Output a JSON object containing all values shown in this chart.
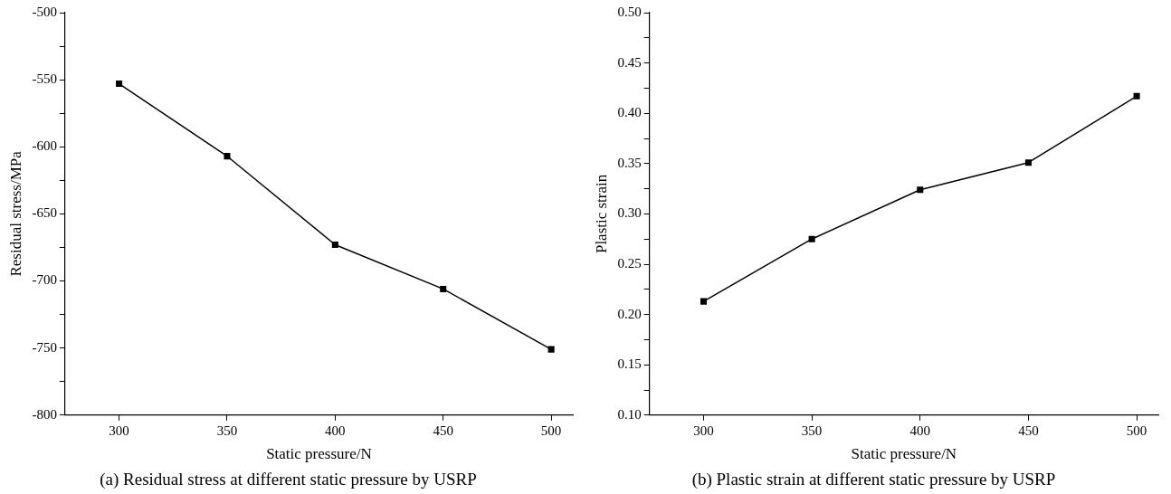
{
  "chart_data": [
    {
      "type": "line",
      "title": "(a) Residual stress at different static pressure by USRP",
      "xlabel": "Static pressure/N",
      "ylabel": "Residual stress/MPa",
      "x": [
        300,
        350,
        400,
        450,
        500
      ],
      "series": [
        {
          "color": "#000000",
          "values": [
            -553,
            -607,
            -673,
            -706,
            -751
          ]
        }
      ],
      "xlim": [
        275,
        510
      ],
      "xticks": [
        300,
        350,
        400,
        450,
        500
      ],
      "ylim": [
        -800,
        -500
      ],
      "yticks": [
        -800,
        {
          "value": -775,
          "label": null
        },
        -750,
        {
          "value": -725,
          "label": null
        },
        -700,
        {
          "value": -675,
          "label": null
        },
        -650,
        {
          "value": -625,
          "label": null
        },
        -600,
        {
          "value": -575,
          "label": null
        },
        -550,
        {
          "value": -525,
          "label": null
        },
        -500
      ],
      "grid": false,
      "legend": false,
      "marker": "square",
      "line_style": "solid"
    },
    {
      "type": "line",
      "title": "(b) Plastic strain at different static pressure by USRP",
      "xlabel": "Static pressure/N",
      "ylabel": "Plastic strain",
      "x": [
        300,
        350,
        400,
        450,
        500
      ],
      "series": [
        {
          "color": "#000000",
          "values": [
            0.213,
            0.275,
            0.324,
            0.351,
            0.417
          ]
        }
      ],
      "xlim": [
        275,
        510
      ],
      "xticks": [
        300,
        350,
        400,
        450,
        500
      ],
      "ylim": [
        0.1,
        0.5
      ],
      "yticks": [
        {
          "value": 0.1,
          "label": "0.10"
        },
        {
          "value": 0.125,
          "label": null
        },
        {
          "value": 0.15,
          "label": "0.15"
        },
        {
          "value": 0.175,
          "label": null
        },
        {
          "value": 0.2,
          "label": "0.20"
        },
        {
          "value": 0.225,
          "label": null
        },
        {
          "value": 0.25,
          "label": "0.25"
        },
        {
          "value": 0.275,
          "label": null
        },
        {
          "value": 0.3,
          "label": "0.30"
        },
        {
          "value": 0.325,
          "label": null
        },
        {
          "value": 0.35,
          "label": "0.35"
        },
        {
          "value": 0.375,
          "label": null
        },
        {
          "value": 0.4,
          "label": "0.40"
        },
        {
          "value": 0.425,
          "label": null
        },
        {
          "value": 0.45,
          "label": "0.45"
        },
        {
          "value": 0.475,
          "label": null
        },
        {
          "value": 0.5,
          "label": "0.50"
        }
      ],
      "grid": false,
      "legend": false,
      "marker": "square",
      "line_style": "solid"
    }
  ]
}
